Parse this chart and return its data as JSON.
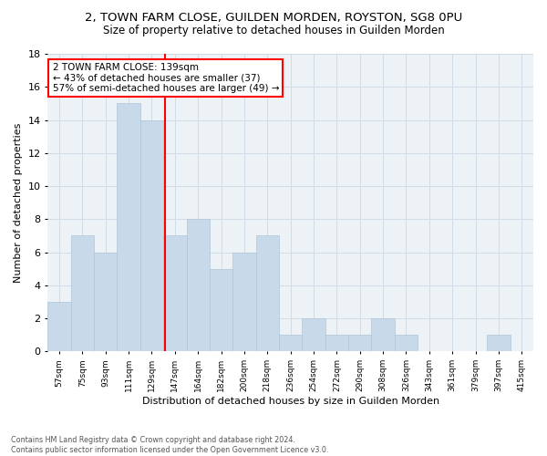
{
  "title": "2, TOWN FARM CLOSE, GUILDEN MORDEN, ROYSTON, SG8 0PU",
  "subtitle": "Size of property relative to detached houses in Guilden Morden",
  "xlabel": "Distribution of detached houses by size in Guilden Morden",
  "ylabel": "Number of detached properties",
  "bin_labels": [
    "57sqm",
    "75sqm",
    "93sqm",
    "111sqm",
    "129sqm",
    "147sqm",
    "164sqm",
    "182sqm",
    "200sqm",
    "218sqm",
    "236sqm",
    "254sqm",
    "272sqm",
    "290sqm",
    "308sqm",
    "326sqm",
    "343sqm",
    "361sqm",
    "379sqm",
    "397sqm",
    "415sqm"
  ],
  "bar_heights": [
    3,
    7,
    6,
    15,
    14,
    7,
    8,
    5,
    6,
    7,
    1,
    2,
    1,
    1,
    2,
    1,
    0,
    0,
    0,
    1,
    0
  ],
  "bar_color": "#c8d9ea",
  "bar_edge_color": "#aec6d8",
  "grid_color": "#d0dce8",
  "bg_color": "#edf2f7",
  "vline_color": "red",
  "annotation_text": "2 TOWN FARM CLOSE: 139sqm\n← 43% of detached houses are smaller (37)\n57% of semi-detached houses are larger (49) →",
  "annotation_box_color": "white",
  "annotation_box_edge": "red",
  "footnote": "Contains HM Land Registry data © Crown copyright and database right 2024.\nContains public sector information licensed under the Open Government Licence v3.0.",
  "ylim": [
    0,
    18
  ],
  "yticks": [
    0,
    2,
    4,
    6,
    8,
    10,
    12,
    14,
    16,
    18
  ]
}
